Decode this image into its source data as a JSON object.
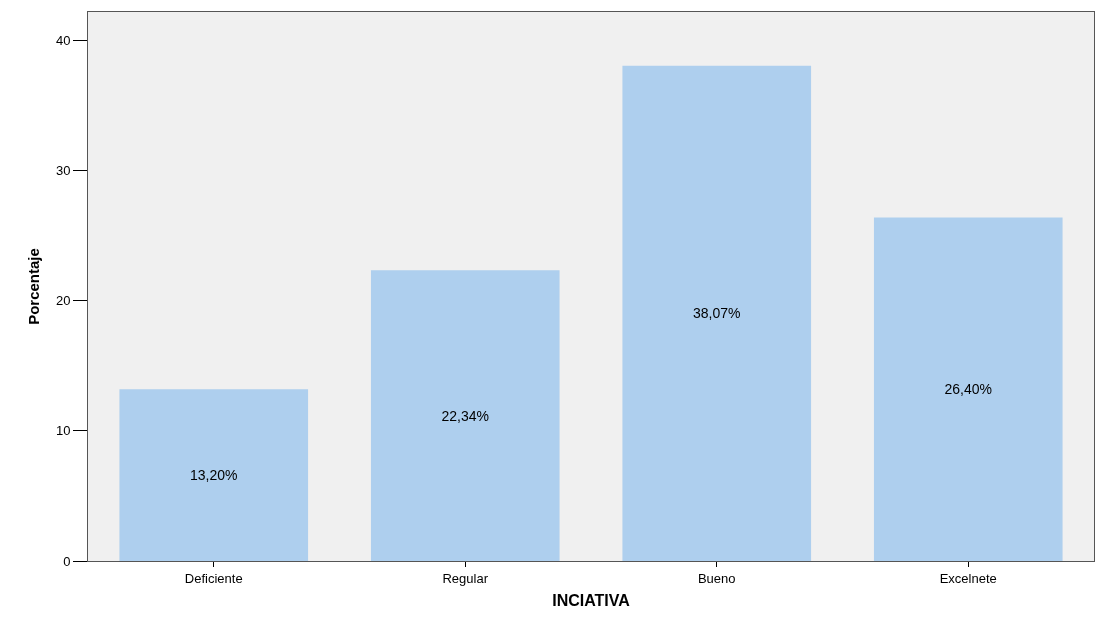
{
  "chart_data": {
    "type": "bar",
    "xlabel": "INCIATIVA",
    "ylabel": "Porcentaje",
    "categories": [
      "Deficiente",
      "Regular",
      "Bueno",
      "Excelnete"
    ],
    "values": [
      13.2,
      22.34,
      38.07,
      26.4
    ],
    "value_labels": [
      "13,20%",
      "22,34%",
      "38,07%",
      "26,40%"
    ],
    "color": "#aecfee",
    "ylim": [
      0,
      42.2
    ],
    "yticks": [
      0,
      10,
      20,
      30,
      40
    ],
    "grid": false
  }
}
